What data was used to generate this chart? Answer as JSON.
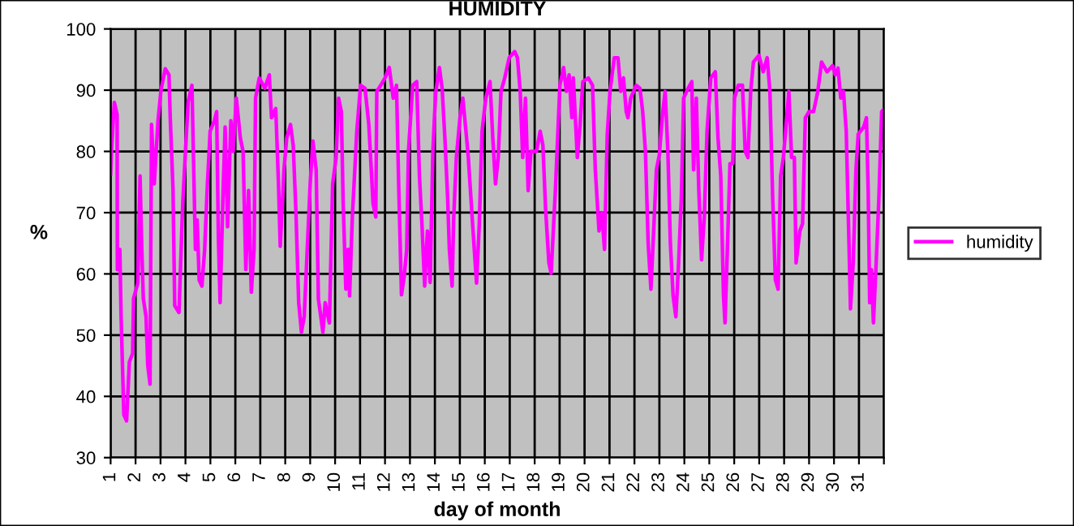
{
  "chart_data": {
    "type": "line",
    "title": "HUMIDITY",
    "xlabel": "day of month",
    "ylabel": "%",
    "xlim": [
      1,
      32
    ],
    "ylim": [
      30,
      100
    ],
    "xticks": [
      1,
      2,
      3,
      4,
      5,
      6,
      7,
      8,
      9,
      10,
      11,
      12,
      13,
      14,
      15,
      16,
      17,
      18,
      19,
      20,
      21,
      22,
      23,
      24,
      25,
      26,
      27,
      28,
      29,
      30,
      31,
      {
        "value": 32,
        "label": null
      }
    ],
    "yticks": [
      30,
      40,
      50,
      60,
      70,
      80,
      90,
      100
    ],
    "grid": true,
    "legend": "right",
    "marker": "none",
    "line_style": "solid",
    "series": [
      {
        "name": "humidity",
        "color": "#ff00ff",
        "x": [
          1.0,
          1.04,
          1.15,
          1.26,
          1.27,
          1.37,
          1.42,
          1.53,
          1.64,
          1.75,
          1.88,
          1.92,
          2.09,
          2.18,
          2.25,
          2.31,
          2.42,
          2.49,
          2.58,
          2.64,
          2.75,
          2.9,
          3.02,
          3.19,
          3.34,
          3.39,
          3.5,
          3.57,
          3.74,
          3.89,
          4.0,
          4.11,
          4.26,
          4.4,
          4.47,
          4.55,
          4.66,
          4.77,
          4.88,
          4.99,
          5.16,
          5.25,
          5.32,
          5.39,
          5.5,
          5.59,
          5.69,
          5.82,
          5.91,
          6.04,
          6.2,
          6.31,
          6.42,
          6.53,
          6.64,
          6.75,
          6.81,
          6.96,
          7.18,
          7.36,
          7.45,
          7.62,
          7.73,
          7.8,
          7.95,
          8.06,
          8.21,
          8.32,
          8.43,
          8.54,
          8.65,
          8.76,
          8.87,
          9.0,
          9.11,
          9.24,
          9.33,
          9.51,
          9.6,
          9.77,
          9.9,
          10.04,
          10.14,
          10.25,
          10.32,
          10.43,
          10.52,
          10.58,
          10.69,
          10.87,
          11.02,
          11.2,
          11.35,
          11.41,
          11.52,
          11.63,
          11.67,
          11.83,
          12.0,
          12.17,
          12.33,
          12.46,
          12.55,
          12.66,
          12.77,
          12.87,
          12.94,
          13.11,
          13.27,
          13.38,
          13.48,
          13.59,
          13.7,
          13.81,
          13.92,
          14.03,
          14.18,
          14.29,
          14.4,
          14.51,
          14.58,
          14.69,
          14.75,
          14.86,
          15.01,
          15.12,
          15.23,
          15.34,
          15.51,
          15.67,
          15.78,
          15.89,
          16.04,
          16.21,
          16.32,
          16.43,
          16.54,
          16.65,
          16.8,
          16.98,
          17.2,
          17.31,
          17.42,
          17.52,
          17.63,
          17.74,
          17.85,
          18.07,
          18.22,
          18.33,
          18.44,
          18.57,
          18.66,
          18.83,
          19.01,
          19.16,
          19.27,
          19.38,
          19.49,
          19.55,
          19.71,
          19.82,
          19.93,
          20.15,
          20.32,
          20.43,
          20.58,
          20.69,
          20.8,
          20.91,
          21.02,
          21.19,
          21.34,
          21.45,
          21.56,
          21.67,
          21.74,
          21.85,
          22.07,
          22.22,
          22.33,
          22.44,
          22.55,
          22.66,
          22.77,
          22.88,
          23.0,
          23.11,
          23.23,
          23.34,
          23.44,
          23.55,
          23.66,
          23.77,
          23.88,
          23.97,
          24.15,
          24.3,
          24.37,
          24.48,
          24.58,
          24.69,
          24.8,
          24.91,
          25.06,
          25.24,
          25.35,
          25.46,
          25.57,
          25.63,
          25.74,
          25.83,
          25.94,
          26.01,
          26.16,
          26.33,
          26.44,
          26.55,
          26.66,
          26.77,
          26.99,
          27.16,
          27.32,
          27.43,
          27.54,
          27.65,
          27.76,
          27.86,
          27.97,
          28.08,
          28.19,
          28.3,
          28.41,
          28.48,
          28.63,
          28.74,
          28.85,
          29.0,
          29.18,
          29.35,
          29.5,
          29.72,
          29.94,
          30.05,
          30.16,
          30.27,
          30.38,
          30.49,
          30.6,
          30.66,
          30.77,
          30.88,
          30.97,
          31.19,
          31.3,
          31.37,
          31.43,
          31.5,
          31.58,
          31.69,
          31.8,
          31.91,
          31.98
        ],
        "values": [
          76.3,
          80.6,
          88,
          86,
          60.7,
          64,
          53,
          37,
          36,
          45.6,
          47,
          56,
          58.5,
          76,
          64,
          56,
          53,
          45,
          42,
          84.4,
          74.7,
          85,
          90,
          93.5,
          92.5,
          85.5,
          74,
          54.8,
          53.7,
          71.5,
          80,
          88.2,
          90.8,
          64,
          68.8,
          59,
          58,
          64,
          74.7,
          83.3,
          85,
          86.5,
          66,
          55.3,
          72,
          84,
          67.7,
          85,
          80,
          88.7,
          82.2,
          80,
          60.7,
          73.6,
          57,
          64,
          88.7,
          92,
          90.3,
          92.5,
          85.5,
          87,
          74.7,
          64.5,
          77,
          82.2,
          84.4,
          81,
          70,
          55.3,
          50.5,
          53,
          62.9,
          74.7,
          81.7,
          77,
          55.9,
          50.5,
          55.3,
          52,
          74.7,
          79,
          88.7,
          86.5,
          72,
          57.5,
          64,
          56.4,
          69.3,
          83.3,
          90.8,
          90.3,
          84.4,
          80,
          71.5,
          69.3,
          89.8,
          90.8,
          92,
          93.7,
          88.7,
          90.8,
          74.2,
          56.6,
          59.6,
          64,
          80,
          90.8,
          91.4,
          76,
          68.2,
          58,
          67,
          58.6,
          80.3,
          89.5,
          93.7,
          90.3,
          82.2,
          72.5,
          64,
          58,
          68.8,
          79,
          85.7,
          88.7,
          84,
          79,
          68.2,
          58.5,
          68.2,
          83.3,
          88.7,
          91.4,
          82.2,
          74.7,
          79,
          89.8,
          92,
          95.3,
          96.3,
          95.3,
          89.8,
          79,
          88.7,
          73.6,
          80,
          80,
          83.3,
          81,
          70.4,
          61.8,
          60.1,
          73.6,
          90.8,
          93.7,
          89.8,
          92.5,
          85.5,
          92,
          79,
          84.4,
          91.4,
          92,
          90.8,
          77,
          67,
          70,
          64,
          82.8,
          89.8,
          95.3,
          95.3,
          89.8,
          92,
          86.5,
          85.5,
          88.7,
          90.8,
          90.3,
          86.5,
          80,
          65,
          57.5,
          67,
          77,
          79.5,
          85.5,
          89.8,
          80,
          65,
          56.4,
          53,
          61.8,
          72.5,
          88.7,
          90.3,
          91.4,
          77,
          88.7,
          73.6,
          62.3,
          69.3,
          83.3,
          92,
          93,
          82.2,
          76,
          56.4,
          52,
          66,
          78,
          78,
          88.7,
          90.8,
          90.8,
          80,
          79,
          89.8,
          94.6,
          95.7,
          93,
          95.3,
          89.8,
          72.5,
          59,
          57.5,
          76,
          79,
          84.4,
          89.8,
          79,
          79,
          61.8,
          67,
          68.2,
          85.5,
          86.5,
          86.5,
          89.8,
          94.6,
          93,
          94,
          92.5,
          93.6,
          88.7,
          89.8,
          83.3,
          65,
          54.3,
          61.8,
          77,
          82.8,
          84,
          85.5,
          73.6,
          55.3,
          60.7,
          52,
          61.8,
          72.5,
          86.5,
          86.8
        ]
      }
    ]
  }
}
